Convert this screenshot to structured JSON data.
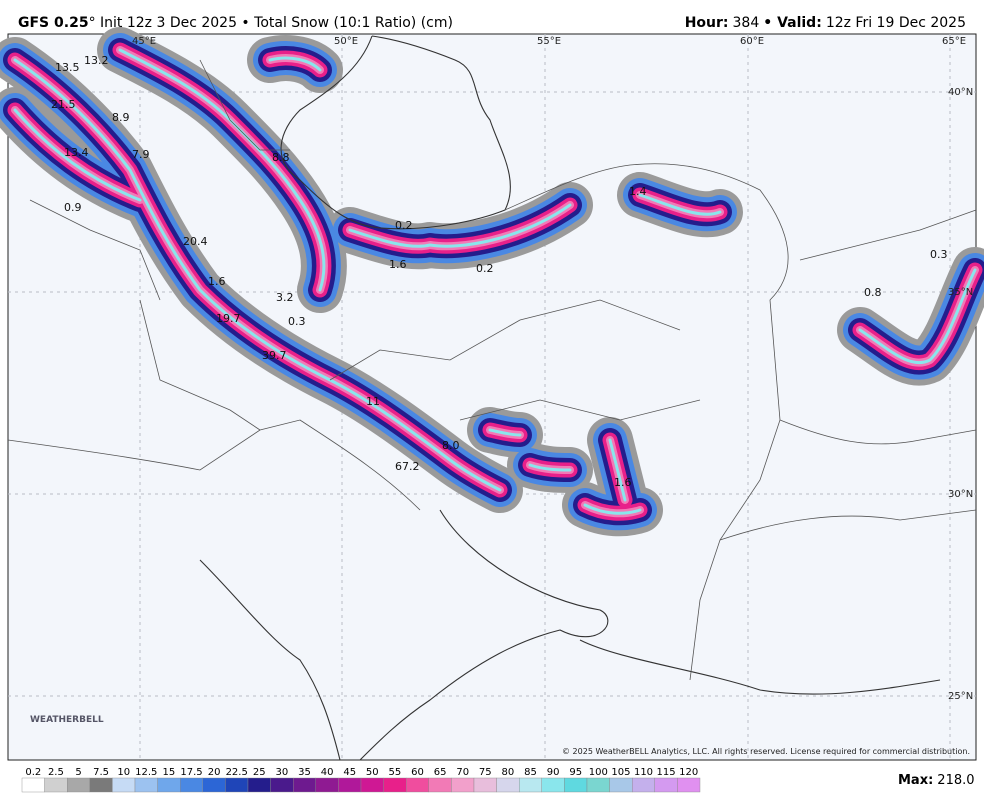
{
  "header": {
    "model": "GFS 0.25",
    "title": "° Init 12z 3 Dec 2025 • Total Snow (10:1 Ratio) (cm)",
    "hour_label": "Hour:",
    "hour": "384",
    "valid_label": "• Valid:",
    "valid": "12z Fri 19 Dec 2025"
  },
  "map": {
    "lon_labels": [
      "45°E",
      "50°E",
      "55°E",
      "60°E",
      "65°E"
    ],
    "lat_labels": [
      "40°N",
      "35°N",
      "30°N",
      "25°N"
    ],
    "point_labels": [
      "13.5",
      "13.2",
      "21.5",
      "8.9",
      "13.4",
      "7.9",
      "8.8",
      "0.9",
      "20.4",
      "0.2",
      "1.6",
      "0.2",
      "1.4",
      "0.3",
      "0.8",
      "1.6",
      "3.2",
      "19.7",
      "0.3",
      "39.7",
      "11",
      "8.0",
      "67.2",
      "1.6"
    ],
    "logo": "WEATHERBELL",
    "copyright": "© 2025 WeatherBELL Analytics, LLC. All rights reserved. License required for commercial distribution."
  },
  "colorbar": {
    "labels": [
      "0.2",
      "2.5",
      "5",
      "7.5",
      "10",
      "12.5",
      "15",
      "17.5",
      "20",
      "22.5",
      "25",
      "30",
      "35",
      "40",
      "45",
      "50",
      "55",
      "60",
      "65",
      "70",
      "75",
      "80",
      "85",
      "90",
      "95",
      "100",
      "105",
      "110",
      "115",
      "120"
    ],
    "colors": [
      "#ffffff",
      "#d0d0d0",
      "#a8a8a8",
      "#7a7a7a",
      "#c6dbf5",
      "#9cc2f0",
      "#6fa7eb",
      "#4a88e3",
      "#2c66d6",
      "#1f45b8",
      "#241d8c",
      "#4a1a8c",
      "#6e1a8f",
      "#8f1a92",
      "#b0189a",
      "#cf1894",
      "#e8208a",
      "#f04d9e",
      "#f27ab6",
      "#f2a0cb",
      "#e8bedc",
      "#d6d6ec",
      "#b8e8f0",
      "#8ae6ec",
      "#5fd9e0",
      "#7ad6d0",
      "#a8c8e8",
      "#c4b0ec",
      "#d49af0",
      "#e090f0"
    ],
    "max_label": "Max:",
    "max": "218.0"
  }
}
